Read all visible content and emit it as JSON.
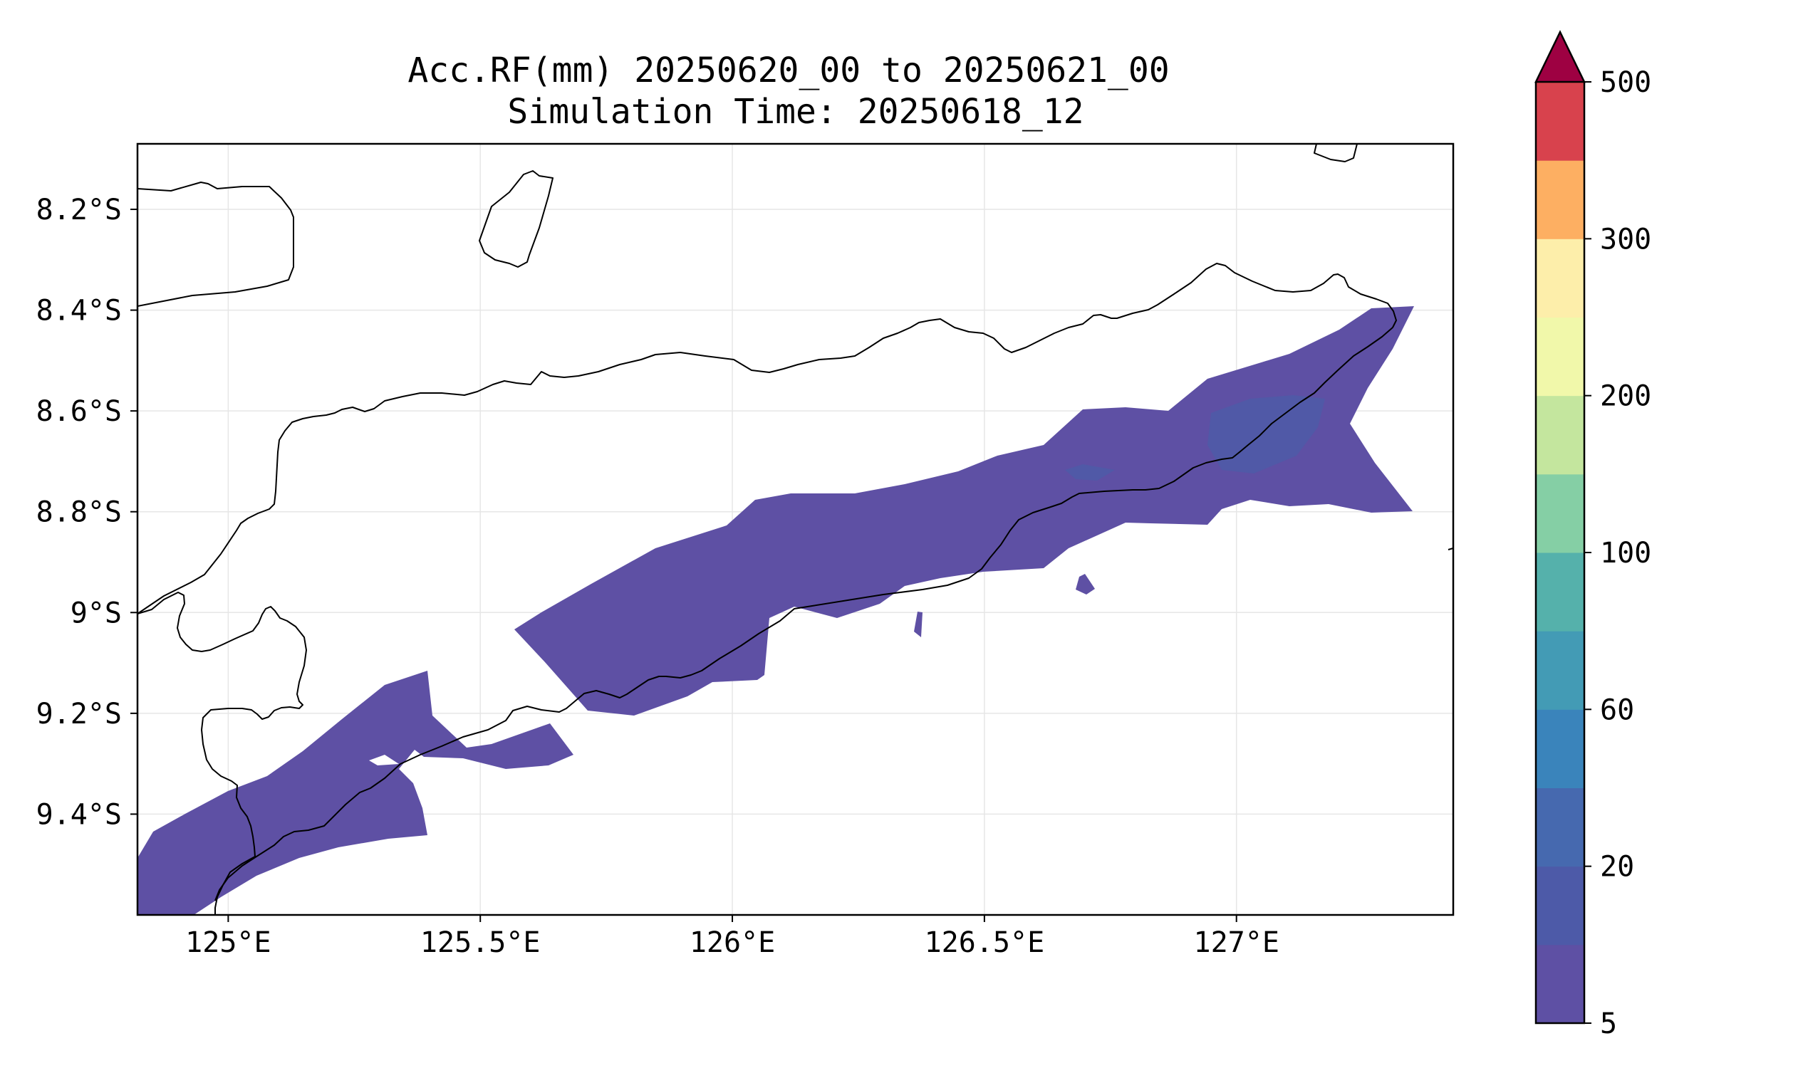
{
  "title": {
    "line1": "Acc.RF(mm) 20250620_00 to 20250621_00",
    "line2": "Simulation Time: 20250618_12"
  },
  "map": {
    "extent": {
      "lon_min": 124.82,
      "lon_max": 127.43,
      "lat_min": -9.6,
      "lat_max": -8.07
    },
    "x_ticks": [
      {
        "lon": 125.0,
        "label": "125°E"
      },
      {
        "lon": 125.5,
        "label": "125.5°E"
      },
      {
        "lon": 126.0,
        "label": "126°E"
      },
      {
        "lon": 126.5,
        "label": "126.5°E"
      },
      {
        "lon": 127.0,
        "label": "127°E"
      }
    ],
    "y_ticks": [
      {
        "lat": -8.2,
        "label": "8.2°S"
      },
      {
        "lat": -8.4,
        "label": "8.4°S"
      },
      {
        "lat": -8.6,
        "label": "8.6°S"
      },
      {
        "lat": -8.8,
        "label": "8.8°S"
      },
      {
        "lat": -9.0,
        "label": "9°S"
      },
      {
        "lat": -9.2,
        "label": "9.2°S"
      },
      {
        "lat": -9.4,
        "label": "9.4°S"
      }
    ],
    "grid": true
  },
  "colorbar": {
    "levels": [
      5,
      10,
      20,
      40,
      60,
      80,
      100,
      150,
      200,
      250,
      300,
      400,
      500
    ],
    "colors": [
      "#5e50a4",
      "#4d5aa8",
      "#4669af",
      "#3a84bb",
      "#439bb5",
      "#55b1ab",
      "#85cfa5",
      "#c4e69e",
      "#f1f8aa",
      "#fdeeaa",
      "#fdaf62",
      "#d8424d"
    ],
    "extend_color": "#9e0142",
    "tick_labels": [
      {
        "value": 5,
        "label": "5"
      },
      {
        "value": 20,
        "label": "20"
      },
      {
        "value": 60,
        "label": "60"
      },
      {
        "value": 100,
        "label": "100"
      },
      {
        "value": 200,
        "label": "200"
      },
      {
        "value": 300,
        "label": "300"
      },
      {
        "value": 500,
        "label": "500"
      }
    ]
  }
}
